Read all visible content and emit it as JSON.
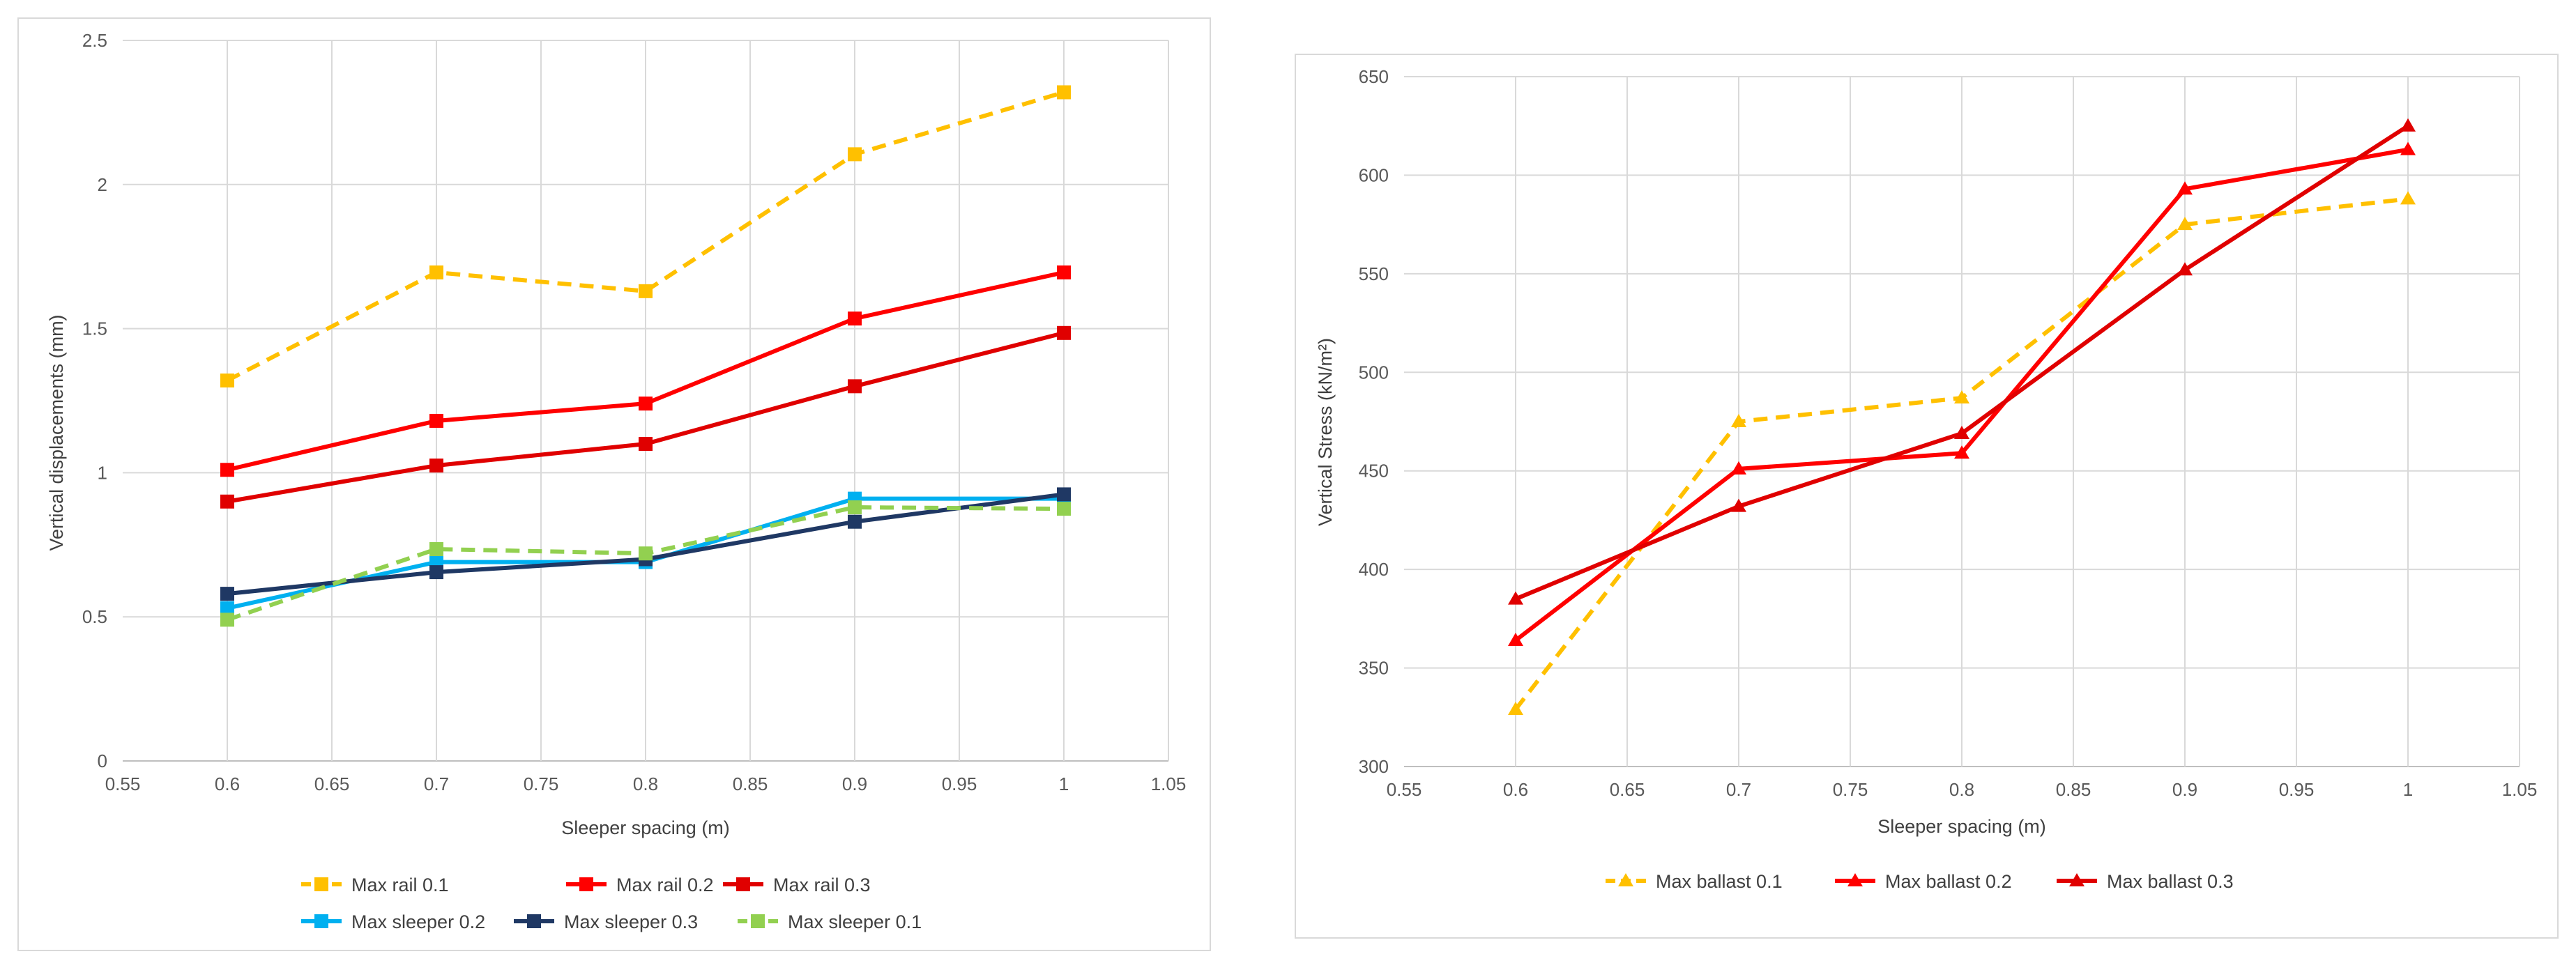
{
  "chart_data": [
    {
      "type": "line",
      "title": "",
      "xlabel": "Sleeper spacing (m)",
      "ylabel": "Vertical displacements (mm)",
      "xlim": [
        0.55,
        1.05
      ],
      "ylim": [
        0,
        2.5
      ],
      "xticks": [
        "0.55",
        "0.6",
        "0.65",
        "0.7",
        "0.75",
        "0.8",
        "0.85",
        "0.9",
        "0.95",
        "1",
        "1.05"
      ],
      "yticks": [
        "0",
        "0.5",
        "1",
        "1.5",
        "2",
        "2.5"
      ],
      "grid": true,
      "legend_position": "bottom",
      "x": [
        0.6,
        0.7,
        0.8,
        0.9,
        1.0
      ],
      "series": [
        {
          "name": "Max rail 0.1",
          "values": [
            1.32,
            1.695,
            1.63,
            2.105,
            2.32
          ],
          "color": "#FFC000",
          "dash": true,
          "marker": "square"
        },
        {
          "name": "Max rail 0.2",
          "values": [
            1.01,
            1.18,
            1.24,
            1.535,
            1.695
          ],
          "color": "#FF0000",
          "dash": false,
          "marker": "square"
        },
        {
          "name": "Max rail 0.3",
          "values": [
            0.9,
            1.025,
            1.1,
            1.3,
            1.485
          ],
          "color": "#E00000",
          "dash": false,
          "marker": "square"
        },
        {
          "name": "Max sleeper 0.2",
          "values": [
            0.53,
            0.69,
            0.69,
            0.91,
            0.91
          ],
          "color": "#00B0F0",
          "dash": false,
          "marker": "square"
        },
        {
          "name": "Max sleeper 0.3",
          "values": [
            0.58,
            0.655,
            0.7,
            0.83,
            0.925
          ],
          "color": "#1F3864",
          "dash": false,
          "marker": "square"
        },
        {
          "name": "Max sleeper 0.1",
          "values": [
            0.49,
            0.735,
            0.72,
            0.88,
            0.875
          ],
          "color": "#92D050",
          "dash": true,
          "marker": "square"
        }
      ]
    },
    {
      "type": "line",
      "title": "",
      "xlabel": "Sleeper spacing (m)",
      "ylabel": "Vertical Stress  (kN/m²)",
      "xlim": [
        0.55,
        1.05
      ],
      "ylim": [
        300,
        650
      ],
      "xticks": [
        "0.55",
        "0.6",
        "0.65",
        "0.7",
        "0.75",
        "0.8",
        "0.85",
        "0.9",
        "0.95",
        "1",
        "1.05"
      ],
      "yticks": [
        "300",
        "350",
        "400",
        "450",
        "500",
        "550",
        "600",
        "650"
      ],
      "grid": true,
      "legend_position": "bottom",
      "x": [
        0.6,
        0.7,
        0.8,
        0.9,
        1.0
      ],
      "series": [
        {
          "name": "Max ballast  0.1",
          "values": [
            329,
            475,
            487,
            575,
            588
          ],
          "color": "#FFC000",
          "dash": true,
          "marker": "triangle"
        },
        {
          "name": "Max ballast 0.2",
          "values": [
            364,
            451,
            459,
            593,
            613
          ],
          "color": "#FF0000",
          "dash": false,
          "marker": "triangle"
        },
        {
          "name": "Max ballast  0.3",
          "values": [
            385,
            432,
            469,
            552,
            625
          ],
          "color": "#E00000",
          "dash": false,
          "marker": "triangle"
        }
      ]
    }
  ]
}
